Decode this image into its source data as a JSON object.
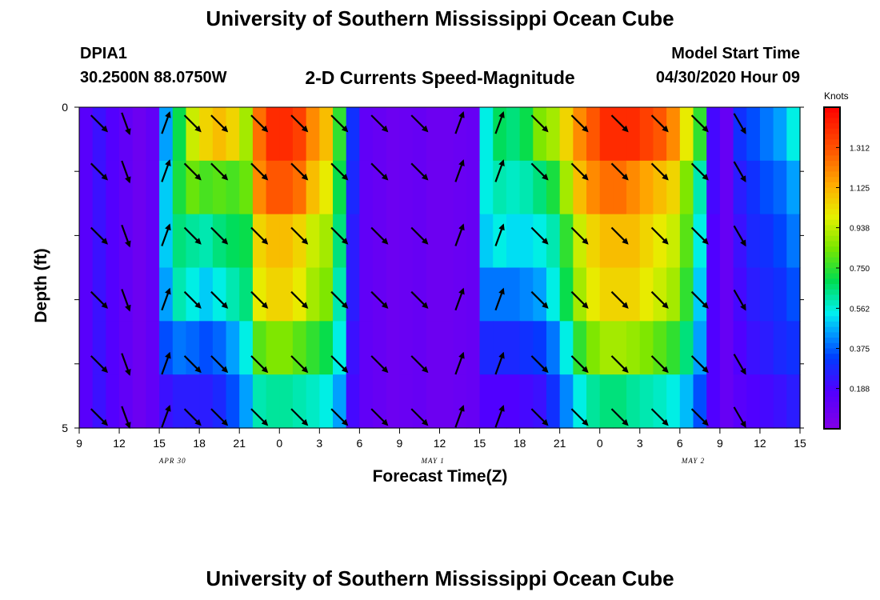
{
  "header": {
    "title_top": "University of Southern Mississippi Ocean Cube",
    "station_id": "DPIA1",
    "station_coords": "30.2500N 88.0750W",
    "plot_title": "2-D Currents Speed-Magnitude",
    "model_label": "Model Start Time",
    "model_time": "04/30/2020 Hour 09"
  },
  "footer": {
    "title_bottom": "University of Southern Mississippi Ocean Cube"
  },
  "chart_data": {
    "type": "heatmap",
    "xlabel": "Forecast Time(Z)",
    "ylabel": "Depth (ft)",
    "x_ticks": [
      "9",
      "12",
      "15",
      "18",
      "21",
      "0",
      "3",
      "6",
      "9",
      "12",
      "15",
      "18",
      "21",
      "0",
      "3",
      "6",
      "9",
      "12",
      "15"
    ],
    "date_labels": [
      {
        "label": "APR 30",
        "hour_index": 7
      },
      {
        "label": "MAY 1",
        "hour_index": 26.5
      },
      {
        "label": "MAY 2",
        "hour_index": 46
      }
    ],
    "y_ticks": [
      "0",
      "5"
    ],
    "ylim": [
      0,
      5
    ],
    "hours_total": 54,
    "depth_levels": 5,
    "colorbar": {
      "title": "Knots",
      "ticks": [
        "0.188",
        "0.375",
        "0.562",
        "0.750",
        "0.938",
        "1.125",
        "1.312"
      ],
      "range": [
        0,
        1.5
      ]
    },
    "speed_knots": [
      [
        0.15,
        0.22,
        0.17,
        0.12,
        0.08,
        0.12,
        0.45,
        0.7,
        0.95,
        1.05,
        1.1,
        1.05,
        0.9,
        1.25,
        1.4,
        1.4,
        1.35,
        1.2,
        1.1,
        0.75,
        0.3,
        0.12,
        0.1,
        0.08,
        0.09,
        0.1,
        0.08,
        0.08,
        0.09,
        0.1,
        0.55,
        0.68,
        0.65,
        0.7,
        0.85,
        0.9,
        1.05,
        1.2,
        1.3,
        1.4,
        1.4,
        1.4,
        1.35,
        1.3,
        1.2,
        1.0,
        0.75,
        0.2,
        0.1,
        0.3,
        0.35,
        0.4,
        0.45,
        0.55
      ],
      [
        0.15,
        0.22,
        0.17,
        0.12,
        0.08,
        0.12,
        0.5,
        0.72,
        0.82,
        0.78,
        0.8,
        0.78,
        0.82,
        1.2,
        1.3,
        1.3,
        1.25,
        1.1,
        1.0,
        0.7,
        0.28,
        0.12,
        0.1,
        0.08,
        0.09,
        0.1,
        0.08,
        0.08,
        0.09,
        0.1,
        0.55,
        0.6,
        0.58,
        0.6,
        0.65,
        0.72,
        0.9,
        1.1,
        1.2,
        1.25,
        1.25,
        1.2,
        1.15,
        1.1,
        1.05,
        0.85,
        0.6,
        0.2,
        0.1,
        0.25,
        0.3,
        0.35,
        0.38,
        0.45
      ],
      [
        0.15,
        0.22,
        0.17,
        0.12,
        0.08,
        0.12,
        0.5,
        0.65,
        0.62,
        0.6,
        0.65,
        0.68,
        0.7,
        1.05,
        1.1,
        1.1,
        1.05,
        0.95,
        0.9,
        0.65,
        0.25,
        0.12,
        0.1,
        0.08,
        0.09,
        0.1,
        0.08,
        0.08,
        0.09,
        0.1,
        0.5,
        0.55,
        0.52,
        0.52,
        0.55,
        0.6,
        0.75,
        0.95,
        1.05,
        1.1,
        1.1,
        1.1,
        1.05,
        1.0,
        0.95,
        0.8,
        0.55,
        0.18,
        0.1,
        0.22,
        0.28,
        0.3,
        0.34,
        0.4
      ],
      [
        0.15,
        0.22,
        0.17,
        0.12,
        0.08,
        0.12,
        0.45,
        0.6,
        0.55,
        0.5,
        0.55,
        0.6,
        0.65,
        1.0,
        1.05,
        1.05,
        1.0,
        0.9,
        0.85,
        0.6,
        0.25,
        0.12,
        0.1,
        0.08,
        0.09,
        0.1,
        0.08,
        0.08,
        0.09,
        0.1,
        0.4,
        0.4,
        0.4,
        0.42,
        0.45,
        0.55,
        0.7,
        0.9,
        1.0,
        1.05,
        1.05,
        1.05,
        1.0,
        0.95,
        0.9,
        0.75,
        0.5,
        0.18,
        0.1,
        0.2,
        0.25,
        0.28,
        0.3,
        0.35
      ],
      [
        0.15,
        0.22,
        0.17,
        0.12,
        0.08,
        0.12,
        0.35,
        0.4,
        0.38,
        0.35,
        0.38,
        0.45,
        0.55,
        0.8,
        0.85,
        0.85,
        0.8,
        0.75,
        0.7,
        0.55,
        0.22,
        0.12,
        0.1,
        0.08,
        0.09,
        0.1,
        0.08,
        0.08,
        0.09,
        0.1,
        0.28,
        0.28,
        0.28,
        0.3,
        0.32,
        0.4,
        0.55,
        0.75,
        0.85,
        0.9,
        0.9,
        0.88,
        0.85,
        0.8,
        0.75,
        0.65,
        0.45,
        0.18,
        0.1,
        0.18,
        0.22,
        0.25,
        0.28,
        0.3
      ],
      [
        0.15,
        0.22,
        0.17,
        0.12,
        0.08,
        0.12,
        0.22,
        0.25,
        0.25,
        0.25,
        0.28,
        0.35,
        0.45,
        0.6,
        0.62,
        0.62,
        0.6,
        0.58,
        0.55,
        0.45,
        0.2,
        0.12,
        0.1,
        0.08,
        0.09,
        0.1,
        0.08,
        0.08,
        0.09,
        0.1,
        0.18,
        0.18,
        0.18,
        0.2,
        0.22,
        0.3,
        0.42,
        0.55,
        0.62,
        0.65,
        0.65,
        0.62,
        0.6,
        0.58,
        0.55,
        0.48,
        0.35,
        0.18,
        0.1,
        0.15,
        0.18,
        0.2,
        0.22,
        0.25
      ]
    ],
    "vectors": {
      "columns_hour": [
        1,
        3,
        6,
        8,
        10,
        13,
        16,
        19,
        22,
        25,
        28,
        31,
        34,
        37,
        40,
        43,
        46,
        49
      ],
      "rows_depth": [
        0,
        1,
        2,
        3,
        4,
        5
      ],
      "direction_deg": [
        [
          135,
          160,
          20,
          135,
          135,
          135,
          135,
          135,
          135,
          135,
          20,
          20,
          135,
          135,
          135,
          135,
          135,
          150
        ],
        [
          135,
          160,
          20,
          135,
          135,
          135,
          135,
          135,
          135,
          135,
          20,
          20,
          135,
          135,
          135,
          135,
          135,
          150
        ],
        [
          135,
          160,
          20,
          135,
          135,
          135,
          135,
          135,
          135,
          135,
          20,
          20,
          135,
          135,
          135,
          135,
          135,
          150
        ],
        [
          135,
          160,
          20,
          135,
          135,
          135,
          135,
          135,
          135,
          135,
          20,
          20,
          135,
          135,
          135,
          135,
          135,
          150
        ],
        [
          135,
          160,
          20,
          135,
          135,
          135,
          135,
          135,
          135,
          135,
          20,
          20,
          135,
          135,
          135,
          135,
          135,
          150
        ],
        [
          135,
          160,
          20,
          135,
          135,
          135,
          135,
          135,
          135,
          135,
          20,
          20,
          135,
          135,
          135,
          135,
          135,
          150
        ]
      ]
    }
  }
}
